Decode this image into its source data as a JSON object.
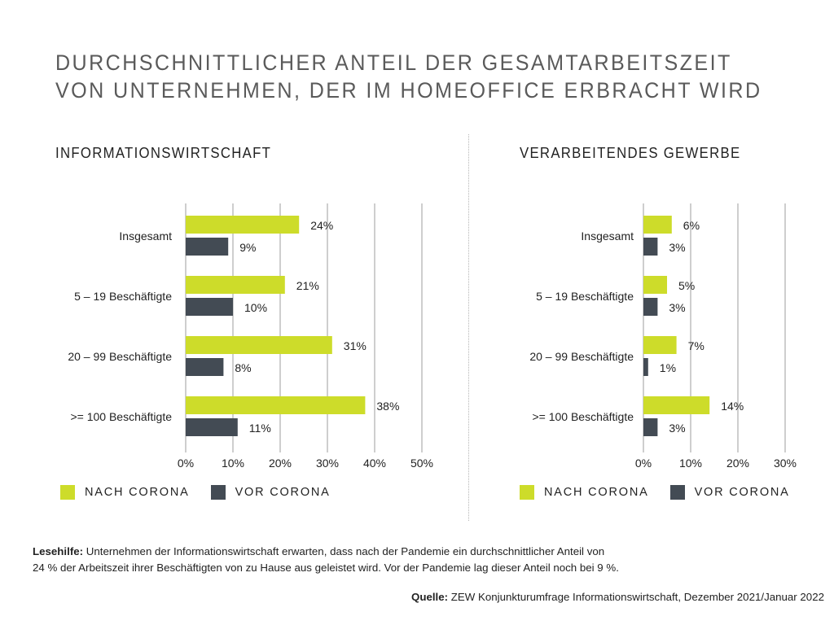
{
  "title": {
    "line1": "DURCHSCHNITTLICHER ANTEIL DER GESAMTARBEITSZEIT",
    "line2": "VON UNTERNEHMEN, DER IM HOMEOFFICE ERBRACHT WIRD"
  },
  "colors": {
    "nach": "#cddc2a",
    "vor": "#434b54",
    "grid": "#bdbdbd"
  },
  "legend": {
    "nach": "NACH CORONA",
    "vor": "VOR CORONA"
  },
  "note": {
    "label": "Lesehilfe:",
    "line1": " Unternehmen der Informationswirtschaft erwarten, dass nach der Pandemie ein durchschnittlicher Anteil von",
    "line2": "24 % der Arbeitszeit ihrer Beschäftigten von zu Hause aus geleistet wird. Vor der Pandemie lag dieser Anteil noch bei 9 %."
  },
  "source": {
    "label": "Quelle:",
    "text": " ZEW Konjunkturumfrage Informationswirtschaft, Dezember 2021/Januar 2022"
  },
  "chart_data": [
    {
      "type": "bar",
      "orientation": "horizontal",
      "title": "INFORMATIONSWIRTSCHAFT",
      "categories": [
        "Insgesamt",
        "5 – 19 Beschäftigte",
        "20 – 99 Beschäftigte",
        ">= 100 Beschäftigte"
      ],
      "series": [
        {
          "name": "NACH CORONA",
          "values": [
            24,
            21,
            31,
            38
          ],
          "labels": [
            "24%",
            "21%",
            "31%",
            "38%"
          ]
        },
        {
          "name": "VOR CORONA",
          "values": [
            9,
            10,
            8,
            11
          ],
          "labels": [
            "9%",
            "10%",
            "8%",
            "11%"
          ]
        }
      ],
      "xlim": [
        0,
        50
      ],
      "xticks": [
        "0%",
        "10%",
        "20%",
        "30%",
        "40%",
        "50%"
      ],
      "grid": true,
      "legend": "bottom-left"
    },
    {
      "type": "bar",
      "orientation": "horizontal",
      "title": "VERARBEITENDES GEWERBE",
      "categories": [
        "Insgesamt",
        "5 – 19 Beschäftigte",
        "20 – 99 Beschäftigte",
        ">= 100 Beschäftigte"
      ],
      "series": [
        {
          "name": "NACH CORONA",
          "values": [
            6,
            5,
            7,
            14
          ],
          "labels": [
            "6%",
            "5%",
            "7%",
            "14%"
          ]
        },
        {
          "name": "VOR CORONA",
          "values": [
            3,
            3,
            1,
            3
          ],
          "labels": [
            "3%",
            "3%",
            "1%",
            "3%"
          ]
        }
      ],
      "xlim": [
        0,
        30
      ],
      "xticks": [
        "0%",
        "10%",
        "20%",
        "30%"
      ],
      "grid": true,
      "legend": "bottom-left"
    }
  ]
}
